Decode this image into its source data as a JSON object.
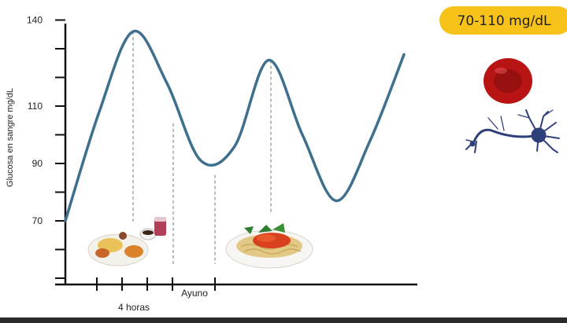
{
  "chart_data": {
    "type": "line",
    "title": "",
    "ylabel": "Glucosa en sangre mg/dL",
    "xlabel": "",
    "ylim": [
      40,
      145
    ],
    "y_ticks": [
      140,
      110,
      90,
      70
    ],
    "y_minor_ticks": [
      130,
      120,
      100,
      80,
      60,
      50
    ],
    "x_annotations": [
      "4 horas",
      "Ayuno"
    ],
    "x": [
      0,
      1,
      2,
      3,
      4,
      5,
      6,
      7,
      8,
      9,
      10
    ],
    "series": [
      {
        "values": [
          70,
          108,
          136,
          118,
          91,
          96,
          126,
          100,
          77,
          98,
          128
        ]
      }
    ],
    "grid": false
  },
  "badge": {
    "text": "70-110 mg/dL",
    "color": "#f7c21a"
  },
  "colors": {
    "curve": "#3f6f8f",
    "axis": "#111111",
    "guide": "#777777",
    "blood_cell": "#b81414",
    "neuron": "#2f3f7a"
  },
  "icons": [
    "food-plate-icon",
    "spaghetti-plate-icon",
    "red-blood-cell-icon",
    "neuron-icon"
  ]
}
